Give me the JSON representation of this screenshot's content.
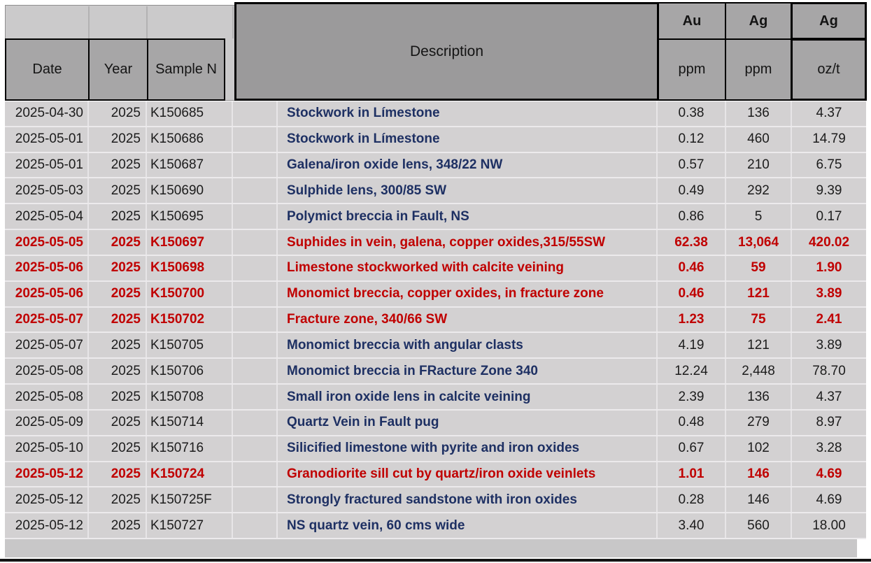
{
  "table": {
    "header": {
      "date": "Date",
      "year": "Year",
      "sample": "Sample N",
      "description": "Description",
      "au_element": "Au",
      "au_unit": "ppm",
      "ag_element": "Ag",
      "ag_unit": "ppm",
      "agoz_element": "Ag",
      "agoz_unit": "oz/t"
    },
    "rows": [
      {
        "date": "2025-04-30",
        "year": "2025",
        "sample": "K150685",
        "description": "Stockwork in Límestone",
        "au_ppm": "0.38",
        "ag_ppm": "136",
        "ag_ozt": "4.37",
        "highlighted": false
      },
      {
        "date": "2025-05-01",
        "year": "2025",
        "sample": "K150686",
        "description": "Stockwork in Límestone",
        "au_ppm": "0.12",
        "ag_ppm": "460",
        "ag_ozt": "14.79",
        "highlighted": false
      },
      {
        "date": "2025-05-01",
        "year": "2025",
        "sample": "K150687",
        "description": "Galena/iron oxide lens, 348/22 NW",
        "au_ppm": "0.57",
        "ag_ppm": "210",
        "ag_ozt": "6.75",
        "highlighted": false
      },
      {
        "date": "2025-05-03",
        "year": "2025",
        "sample": "K150690",
        "description": "Sulphide lens, 300/85 SW",
        "au_ppm": "0.49",
        "ag_ppm": "292",
        "ag_ozt": "9.39",
        "highlighted": false
      },
      {
        "date": "2025-05-04",
        "year": "2025",
        "sample": "K150695",
        "description": "Polymict breccia in Fault, NS",
        "au_ppm": "0.86",
        "ag_ppm": "5",
        "ag_ozt": "0.17",
        "highlighted": false
      },
      {
        "date": "2025-05-05",
        "year": "2025",
        "sample": "K150697",
        "description": "Suphides in vein, galena, copper oxides,315/55SW",
        "au_ppm": "62.38",
        "ag_ppm": "13,064",
        "ag_ozt": "420.02",
        "highlighted": true
      },
      {
        "date": "2025-05-06",
        "year": "2025",
        "sample": "K150698",
        "description": "Limestone stockworked with calcite veining",
        "au_ppm": "0.46",
        "ag_ppm": "59",
        "ag_ozt": "1.90",
        "highlighted": true
      },
      {
        "date": "2025-05-06",
        "year": "2025",
        "sample": "K150700",
        "description": "Monomict breccia, copper oxides, in fracture zone",
        "au_ppm": "0.46",
        "ag_ppm": "121",
        "ag_ozt": "3.89",
        "highlighted": true
      },
      {
        "date": "2025-05-07",
        "year": "2025",
        "sample": "K150702",
        "description": "Fracture zone, 340/66 SW",
        "au_ppm": "1.23",
        "ag_ppm": "75",
        "ag_ozt": "2.41",
        "highlighted": true
      },
      {
        "date": "2025-05-07",
        "year": "2025",
        "sample": "K150705",
        "description": "Monomict breccia with angular clasts",
        "au_ppm": "4.19",
        "ag_ppm": "121",
        "ag_ozt": "3.89",
        "highlighted": false
      },
      {
        "date": "2025-05-08",
        "year": "2025",
        "sample": "K150706",
        "description": "Monomict breccia in FRacture Zone 340",
        "au_ppm": "12.24",
        "ag_ppm": "2,448",
        "ag_ozt": "78.70",
        "highlighted": false
      },
      {
        "date": "2025-05-08",
        "year": "2025",
        "sample": "K150708",
        "description": "Small iron oxide lens in calcite veining",
        "au_ppm": "2.39",
        "ag_ppm": "136",
        "ag_ozt": "4.37",
        "highlighted": false
      },
      {
        "date": "2025-05-09",
        "year": "2025",
        "sample": "K150714",
        "description": "Quartz Vein in Fault pug",
        "au_ppm": "0.48",
        "ag_ppm": "279",
        "ag_ozt": "8.97",
        "highlighted": false
      },
      {
        "date": "2025-05-10",
        "year": "2025",
        "sample": "K150716",
        "description": "Silicified limestone with pyrite and iron oxides",
        "au_ppm": "0.67",
        "ag_ppm": "102",
        "ag_ozt": "3.28",
        "highlighted": false
      },
      {
        "date": "2025-05-12",
        "year": "2025",
        "sample": "K150724",
        "description": "Granodiorite sill cut by quartz/iron oxide veinlets",
        "au_ppm": "1.01",
        "ag_ppm": "146",
        "ag_ozt": "4.69",
        "highlighted": true
      },
      {
        "date": "2025-05-12",
        "year": "2025",
        "sample": "K150725F",
        "description": "Strongly fractured sandstone with iron oxides",
        "au_ppm": "0.28",
        "ag_ppm": "146",
        "ag_ozt": "4.69",
        "highlighted": false
      },
      {
        "date": "2025-05-12",
        "year": "2025",
        "sample": "K150727",
        "description": "NS quartz vein, 60 cms wide",
        "au_ppm": "3.40",
        "ag_ppm": "560",
        "ag_ozt": "18.00",
        "highlighted": false
      }
    ]
  },
  "colors": {
    "highlight_text": "#C00000",
    "description_text": "#1E3063",
    "header_cell_fill": "#A7A6A7",
    "description_header_fill": "#9B9A9B",
    "corner_fill": "#CBCACB",
    "row_fill": "#D3D1D2",
    "footer_fill": "#C8C7C8"
  }
}
